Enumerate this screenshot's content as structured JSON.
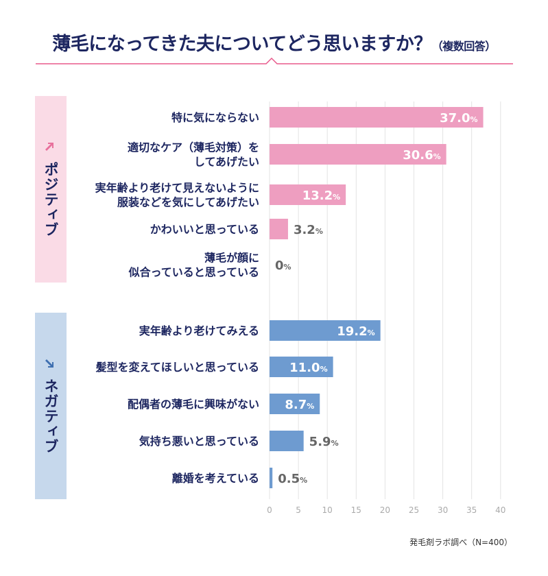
{
  "title": {
    "main": "薄毛になってきた夫についてどう思いますか？",
    "sub": "（複数回答）"
  },
  "source": "発毛剤ラボ調べ（N=400）",
  "groups": [
    {
      "label": "ポジティブ",
      "arrow": "up-right-arrow-icon",
      "bg": "#fadbe6",
      "arrow_color": "#e8709c"
    },
    {
      "label": "ネガティブ",
      "arrow": "down-right-arrow-icon",
      "bg": "#c6d8ec",
      "arrow_color": "#3e6fb0"
    }
  ],
  "colors": {
    "positive": "#ee9ec0",
    "negative": "#6e9bd0",
    "title_line": "#e85a8c",
    "text": "#1d2660",
    "outside_label": "#666666"
  },
  "chart_data": {
    "type": "bar",
    "orientation": "horizontal",
    "xlim": [
      0,
      40
    ],
    "xticks": [
      "0",
      "5",
      "10",
      "15",
      "20",
      "25",
      "30",
      "35",
      "40"
    ],
    "grid": true,
    "unit": "%",
    "series": [
      {
        "group": "ポジティブ",
        "categories": [
          [
            "特に気にならない"
          ],
          [
            "適切なケア（薄毛対策）を",
            "してあげたい"
          ],
          [
            "実年齢より老けて見えないように",
            "服装などを気にしてあげたい"
          ],
          [
            "かわいいと思っている"
          ],
          [
            "薄毛が顔に",
            "似合っていると思っている"
          ]
        ],
        "values": [
          37.0,
          30.6,
          13.2,
          3.2,
          0
        ],
        "labels": [
          "37.0",
          "30.6",
          "13.2",
          "3.2",
          "0"
        ]
      },
      {
        "group": "ネガティブ",
        "categories": [
          [
            "実年齢より老けてみえる"
          ],
          [
            "髪型を変えてほしいと思っている"
          ],
          [
            "配偶者の薄毛に興味がない"
          ],
          [
            "気持ち悪いと思っている"
          ],
          [
            "離婚を考えている"
          ]
        ],
        "values": [
          19.2,
          11.0,
          8.7,
          5.9,
          0.5
        ],
        "labels": [
          "19.2",
          "11.0",
          "8.7",
          "5.9",
          "0.5"
        ]
      }
    ]
  }
}
